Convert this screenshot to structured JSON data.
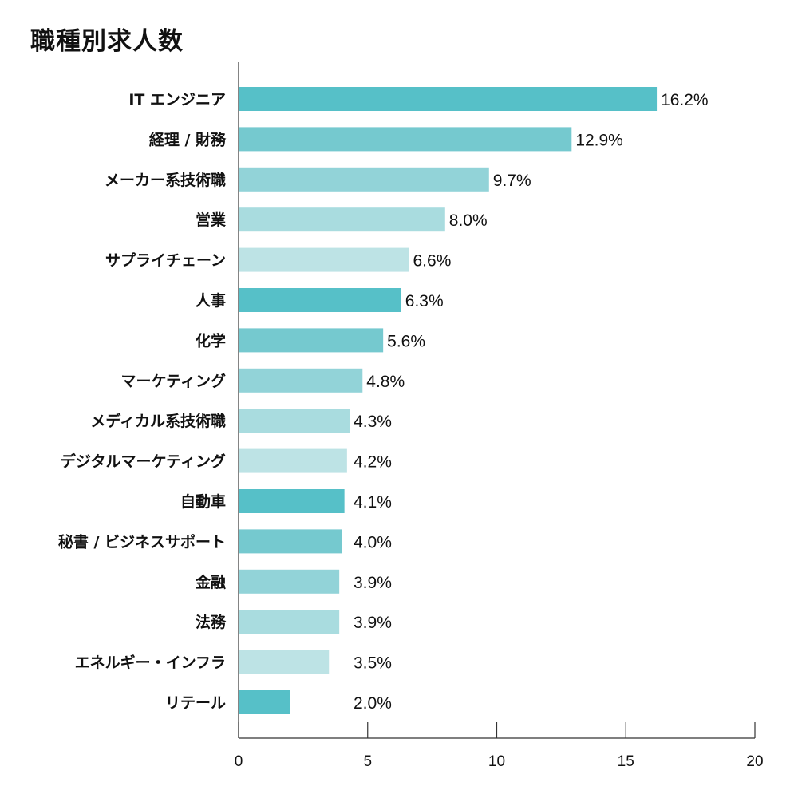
{
  "chart_data": {
    "type": "bar",
    "orientation": "horizontal",
    "title": "職種別求人数",
    "xlabel": "",
    "ylabel": "",
    "xlim": [
      0,
      20
    ],
    "x_ticks": [
      "0",
      "5",
      "10",
      "15",
      "20"
    ],
    "grid": false,
    "categories": [
      "IT エンジニア",
      "経理 / 財務",
      "メーカー系技術職",
      "営業",
      "サプライチェーン",
      "人事",
      "化学",
      "マーケティング",
      "メディカル系技術職",
      "デジタルマーケティング",
      "自動車",
      "秘書 / ビジネスサポート",
      "金融",
      "法務",
      "エネルギー・インフラ",
      "リテール"
    ],
    "values": [
      16.2,
      12.9,
      9.7,
      8.0,
      6.6,
      6.3,
      5.6,
      4.8,
      4.3,
      4.2,
      4.1,
      4.0,
      3.9,
      3.9,
      3.5,
      2.0
    ],
    "value_labels": [
      "16.2%",
      "12.9%",
      "9.7%",
      "8.0%",
      "6.6%",
      "6.3%",
      "5.6%",
      "4.8%",
      "4.3%",
      "4.2%",
      "4.1%",
      "4.0%",
      "3.9%",
      "3.9%",
      "3.5%",
      "2.0%"
    ],
    "colors": [
      "#56c0c8",
      "#75c9cf",
      "#92d3d8",
      "#a9dcdf",
      "#bde3e5"
    ]
  }
}
